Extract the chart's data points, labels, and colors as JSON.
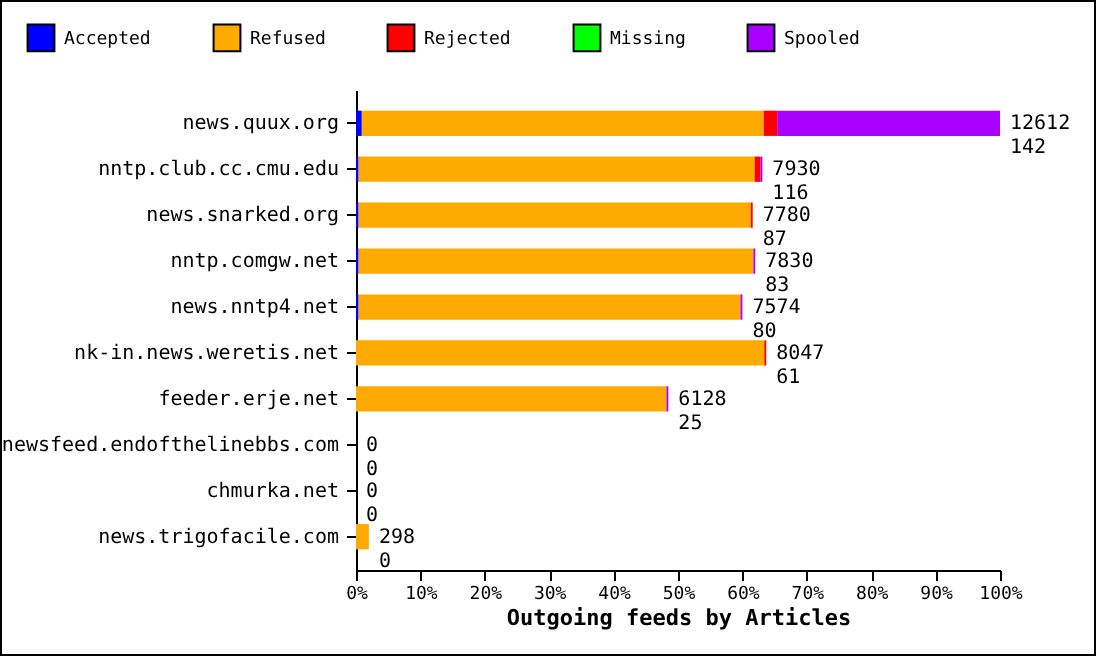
{
  "chart_data": {
    "type": "bar",
    "orientation": "horizontal",
    "stacked": true,
    "xlabel": "Outgoing feeds by Articles",
    "categories": [
      "news.quux.org",
      "nntp.club.cc.cmu.edu",
      "news.snarked.org",
      "nntp.comgw.net",
      "news.nntp4.net",
      "nk-in.news.weretis.net",
      "feeder.erje.net",
      "newsfeed.endofthelinebbs.com",
      "chmurka.net",
      "news.trigofacile.com"
    ],
    "series": [
      {
        "name": "Accepted",
        "color": "#0000ff",
        "values": [
          0.9,
          0.4,
          0.4,
          0.4,
          0.4,
          0,
          0,
          0,
          0,
          0
        ]
      },
      {
        "name": "Refused",
        "color": "#ffaa00",
        "values": [
          62.4,
          61.5,
          60.9,
          61.3,
          59.3,
          63.4,
          48.2,
          0,
          0,
          2.0
        ]
      },
      {
        "name": "Rejected",
        "color": "#ff0000",
        "values": [
          2.1,
          0.9,
          0.3,
          0,
          0,
          0.3,
          0,
          0,
          0,
          0
        ]
      },
      {
        "name": "Missing",
        "color": "#00ff00",
        "values": [
          0,
          0,
          0,
          0,
          0,
          0,
          0,
          0,
          0,
          0
        ]
      },
      {
        "name": "Spooled",
        "color": "#aa00ff",
        "values": [
          34.6,
          0.3,
          0,
          0.3,
          0.3,
          0,
          0.3,
          0,
          0,
          0
        ]
      }
    ],
    "xlim": [
      0,
      100
    ],
    "xticks": [
      {
        "value": 0,
        "label": "0%"
      },
      {
        "value": 10,
        "label": "10%"
      },
      {
        "value": 20,
        "label": "20%"
      },
      {
        "value": 30,
        "label": "30%"
      },
      {
        "value": 40,
        "label": "40%"
      },
      {
        "value": 50,
        "label": "50%"
      },
      {
        "value": 60,
        "label": "60%"
      },
      {
        "value": 70,
        "label": "70%"
      },
      {
        "value": 80,
        "label": "80%"
      },
      {
        "value": 90,
        "label": "90%"
      },
      {
        "value": 100,
        "label": "100%"
      }
    ],
    "annotations": [
      {
        "text": "12612\n142",
        "x": 100,
        "y": "news.quux.org"
      },
      {
        "text": "7930\n116",
        "x": 63.1,
        "y": "nntp.club.cc.cmu.edu"
      },
      {
        "text": "7780\n87",
        "x": 61.6,
        "y": "news.snarked.org"
      },
      {
        "text": "7830\n83",
        "x": 62.0,
        "y": "nntp.comgw.net"
      },
      {
        "text": "7574\n80",
        "x": 60.0,
        "y": "news.nntp4.net"
      },
      {
        "text": "8047\n61",
        "x": 63.7,
        "y": "nk-in.news.weretis.net"
      },
      {
        "text": "6128\n25",
        "x": 48.5,
        "y": "feeder.erje.net"
      },
      {
        "text": "0\n0",
        "x": 0,
        "y": "newsfeed.endofthelinebbs.com"
      },
      {
        "text": "0\n0",
        "x": 0,
        "y": "chmurka.net"
      },
      {
        "text": "298\n0",
        "x": 2.0,
        "y": "news.trigofacile.com"
      }
    ],
    "grid": false,
    "legend": "top"
  }
}
